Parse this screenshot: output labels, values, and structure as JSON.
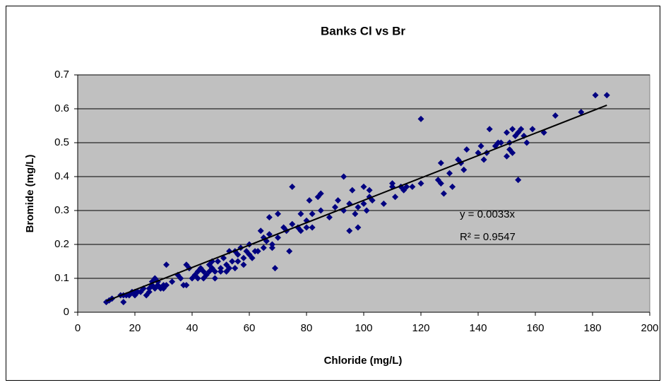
{
  "chart_data": {
    "type": "scatter",
    "title": "Banks  Cl vs  Br",
    "xlabel": "Chloride (mg/L)",
    "ylabel": "Bromide (mg/L)",
    "xlim": [
      0,
      200
    ],
    "xticks": [
      0,
      20,
      40,
      60,
      80,
      100,
      120,
      140,
      160,
      180,
      200
    ],
    "ylim": [
      0,
      0.7
    ],
    "yticks": [
      0,
      0.1,
      0.2,
      0.3,
      0.4,
      0.5,
      0.6,
      0.7
    ],
    "grid": true,
    "color": "#000080",
    "trendline": {
      "equation": "y = 0.0033x",
      "slope": 0.0033,
      "r_squared": "R² = 0.9547"
    },
    "x": [
      10,
      11,
      12,
      15,
      16,
      16,
      17,
      18,
      19,
      20,
      20,
      21,
      22,
      23,
      24,
      25,
      25,
      26,
      26,
      27,
      27,
      28,
      28,
      29,
      30,
      30,
      31,
      31,
      33,
      35,
      36,
      37,
      38,
      38,
      39,
      40,
      41,
      42,
      42,
      43,
      44,
      44,
      45,
      46,
      46,
      47,
      47,
      48,
      48,
      49,
      50,
      50,
      51,
      52,
      52,
      53,
      53,
      54,
      55,
      55,
      56,
      56,
      57,
      58,
      58,
      59,
      60,
      60,
      61,
      62,
      63,
      64,
      65,
      65,
      66,
      67,
      67,
      68,
      68,
      69,
      70,
      70,
      72,
      73,
      74,
      75,
      75,
      77,
      78,
      78,
      80,
      80,
      81,
      82,
      82,
      84,
      85,
      85,
      88,
      90,
      91,
      93,
      93,
      95,
      95,
      96,
      97,
      98,
      98,
      100,
      100,
      101,
      102,
      102,
      103,
      107,
      110,
      110,
      111,
      113,
      114,
      115,
      117,
      120,
      120,
      126,
      127,
      127,
      128,
      130,
      131,
      133,
      134,
      135,
      136,
      140,
      141,
      142,
      143,
      144,
      146,
      147,
      148,
      150,
      150,
      151,
      151,
      152,
      152,
      153,
      154,
      154,
      155,
      156,
      157,
      159,
      163,
      167,
      176,
      181,
      185
    ],
    "values": [
      0.03,
      0.035,
      0.04,
      0.05,
      0.03,
      0.05,
      0.05,
      0.05,
      0.06,
      0.05,
      0.06,
      0.06,
      0.06,
      0.07,
      0.05,
      0.06,
      0.07,
      0.09,
      0.08,
      0.1,
      0.07,
      0.08,
      0.09,
      0.07,
      0.08,
      0.07,
      0.14,
      0.08,
      0.09,
      0.11,
      0.1,
      0.08,
      0.14,
      0.08,
      0.13,
      0.1,
      0.11,
      0.12,
      0.1,
      0.13,
      0.12,
      0.1,
      0.11,
      0.14,
      0.12,
      0.15,
      0.13,
      0.12,
      0.1,
      0.15,
      0.13,
      0.12,
      0.16,
      0.14,
      0.12,
      0.18,
      0.13,
      0.15,
      0.18,
      0.13,
      0.17,
      0.15,
      0.19,
      0.16,
      0.14,
      0.18,
      0.2,
      0.17,
      0.16,
      0.18,
      0.18,
      0.24,
      0.19,
      0.22,
      0.21,
      0.28,
      0.23,
      0.2,
      0.19,
      0.13,
      0.29,
      0.22,
      0.25,
      0.24,
      0.18,
      0.37,
      0.26,
      0.25,
      0.29,
      0.24,
      0.27,
      0.25,
      0.33,
      0.29,
      0.25,
      0.34,
      0.35,
      0.3,
      0.28,
      0.31,
      0.33,
      0.4,
      0.3,
      0.32,
      0.24,
      0.36,
      0.29,
      0.25,
      0.31,
      0.32,
      0.37,
      0.3,
      0.36,
      0.34,
      0.33,
      0.32,
      0.38,
      0.37,
      0.34,
      0.37,
      0.36,
      0.37,
      0.37,
      0.57,
      0.38,
      0.39,
      0.44,
      0.38,
      0.35,
      0.41,
      0.37,
      0.45,
      0.44,
      0.42,
      0.48,
      0.47,
      0.49,
      0.45,
      0.47,
      0.54,
      0.49,
      0.5,
      0.5,
      0.46,
      0.53,
      0.48,
      0.5,
      0.54,
      0.47,
      0.52,
      0.39,
      0.53,
      0.54,
      0.52,
      0.5,
      0.54,
      0.53,
      0.58,
      0.59,
      0.64,
      0.64
    ]
  }
}
